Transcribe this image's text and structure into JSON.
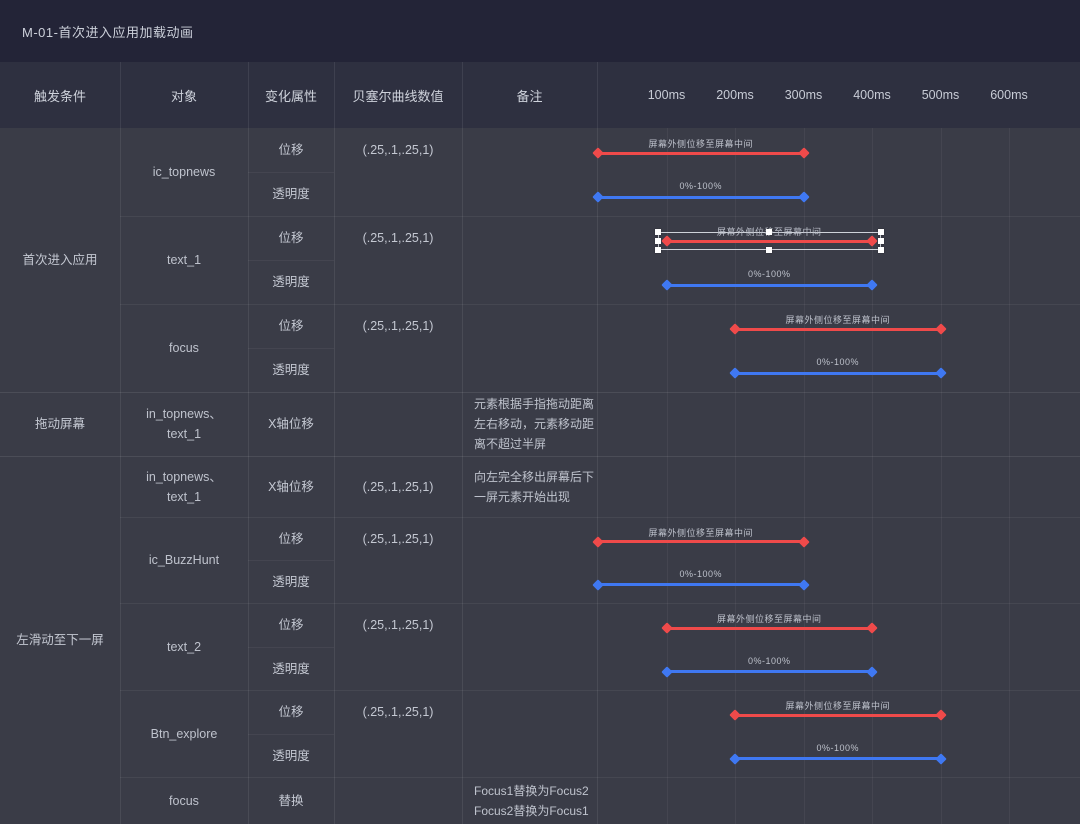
{
  "title": "M-01-首次进入应用加载动画",
  "columns": {
    "trigger": "触发条件",
    "object": "对象",
    "property": "变化属性",
    "bezier": "贝塞尔曲线数值",
    "note": "备注"
  },
  "timeline": {
    "ticks": [
      "100ms",
      "200ms",
      "300ms",
      "400ms",
      "500ms",
      "600ms"
    ],
    "tick_ms": [
      100,
      200,
      300,
      400,
      500,
      600
    ]
  },
  "colors": {
    "red": "#ef4a4a",
    "blue": "#3f78f2",
    "body_bg": "#3a3c47",
    "header_bg": "#2e3040",
    "title_bg": "#232437"
  },
  "bar_labels": {
    "move": "屏幕外侧位移至屏幕中间",
    "opacity": "0%-100%"
  },
  "trigger_groups": [
    {
      "label": "首次进入应用",
      "from": 0,
      "to": 5
    },
    {
      "label": "拖动屏幕",
      "from": 6,
      "to": 6
    },
    {
      "label": "左滑动至下一屏",
      "from": 7,
      "to": 14
    }
  ],
  "object_groups": [
    {
      "label": "ic_topnews",
      "from": 0,
      "to": 1
    },
    {
      "label": "text_1",
      "from": 2,
      "to": 3
    },
    {
      "label": "focus",
      "from": 4,
      "to": 5
    },
    {
      "label": "in_topnews、text_1",
      "from": 6,
      "to": 6
    },
    {
      "label": "in_topnews、text_1",
      "from": 7,
      "to": 7
    },
    {
      "label": "ic_BuzzHunt",
      "from": 8,
      "to": 9
    },
    {
      "label": "text_2",
      "from": 10,
      "to": 11
    },
    {
      "label": "Btn_explore",
      "from": 12,
      "to": 13
    },
    {
      "label": "focus",
      "from": 14,
      "to": 14
    }
  ],
  "rows": [
    {
      "h": 44,
      "property": "位移",
      "bezier": "(.25,.1,.25,1)",
      "note": "",
      "bar": {
        "color": "red",
        "start": 0,
        "end": 300,
        "label": "屏幕外侧位移至屏幕中间",
        "selected": false
      }
    },
    {
      "h": 44,
      "property": "透明度",
      "bezier": "",
      "note": "",
      "bar": {
        "color": "blue",
        "start": 0,
        "end": 300,
        "label": "0%-100%",
        "selected": false
      }
    },
    {
      "h": 44,
      "property": "位移",
      "bezier": "(.25,.1,.25,1)",
      "note": "",
      "bar": {
        "color": "red",
        "start": 100,
        "end": 400,
        "label": "屏幕外侧位移至屏幕中间",
        "selected": true
      }
    },
    {
      "h": 44,
      "property": "透明度",
      "bezier": "",
      "note": "",
      "bar": {
        "color": "blue",
        "start": 100,
        "end": 400,
        "label": "0%-100%",
        "selected": false
      }
    },
    {
      "h": 44,
      "property": "位移",
      "bezier": "(.25,.1,.25,1)",
      "note": "",
      "bar": {
        "color": "red",
        "start": 200,
        "end": 500,
        "label": "屏幕外侧位移至屏幕中间",
        "selected": false
      }
    },
    {
      "h": 44,
      "property": "透明度",
      "bezier": "",
      "note": "",
      "bar": {
        "color": "blue",
        "start": 200,
        "end": 500,
        "label": "0%-100%",
        "selected": false
      }
    },
    {
      "h": 64,
      "property": "X轴位移",
      "bezier": "",
      "note": "元素根据手指拖动距离\n左右移动，元素移动距\n离不超过半屏",
      "bar": null
    },
    {
      "h": 61,
      "property": "X轴位移",
      "bezier": "(.25,.1,.25,1)",
      "note": "向左完全移出屏幕后下\n一屏元素开始出现",
      "bar": null
    },
    {
      "h": 43,
      "property": "位移",
      "bezier": "(.25,.1,.25,1)",
      "note": "",
      "bar": {
        "color": "red",
        "start": 0,
        "end": 300,
        "label": "屏幕外侧位移至屏幕中间",
        "selected": false
      }
    },
    {
      "h": 43,
      "property": "透明度",
      "bezier": "",
      "note": "",
      "bar": {
        "color": "blue",
        "start": 0,
        "end": 300,
        "label": "0%-100%",
        "selected": false
      }
    },
    {
      "h": 44,
      "property": "位移",
      "bezier": "(.25,.1,.25,1)",
      "note": "",
      "bar": {
        "color": "red",
        "start": 100,
        "end": 400,
        "label": "屏幕外侧位移至屏幕中间",
        "selected": false
      }
    },
    {
      "h": 43,
      "property": "透明度",
      "bezier": "",
      "note": "",
      "bar": {
        "color": "blue",
        "start": 100,
        "end": 400,
        "label": "0%-100%",
        "selected": false
      }
    },
    {
      "h": 44,
      "property": "位移",
      "bezier": "(.25,.1,.25,1)",
      "note": "",
      "bar": {
        "color": "red",
        "start": 200,
        "end": 500,
        "label": "屏幕外侧位移至屏幕中间",
        "selected": false
      }
    },
    {
      "h": 43,
      "property": "透明度",
      "bezier": "",
      "note": "",
      "bar": {
        "color": "blue",
        "start": 200,
        "end": 500,
        "label": "0%-100%",
        "selected": false
      }
    },
    {
      "h": 47,
      "property": "替换",
      "bezier": "",
      "note": "Focus1替换为Focus2\nFocus2替换为Focus1",
      "bar": null
    }
  ]
}
